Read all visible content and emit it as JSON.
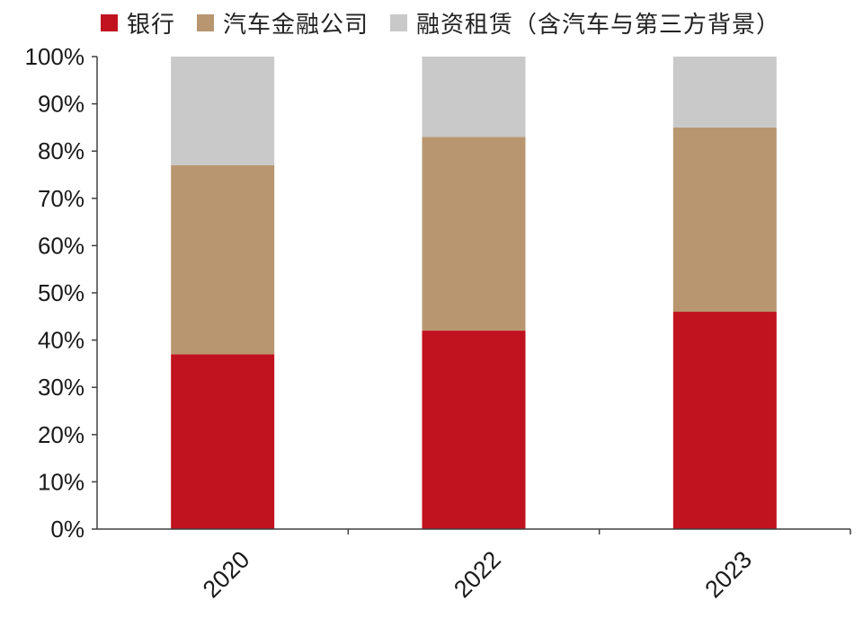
{
  "chart_data": {
    "type": "bar",
    "stacked": true,
    "categories": [
      "2020",
      "2022",
      "2023"
    ],
    "series": [
      {
        "name": "银行",
        "color": "#c1121f",
        "values": [
          37,
          42,
          46
        ]
      },
      {
        "name": "汽车金融公司",
        "color": "#b89770",
        "values": [
          40,
          41,
          39
        ]
      },
      {
        "name": "融资租赁（含汽车与第三方背景）",
        "color": "#c9c9c9",
        "values": [
          23,
          17,
          15
        ]
      }
    ],
    "ylim": [
      0,
      100
    ],
    "yticks": [
      "0%",
      "10%",
      "20%",
      "30%",
      "40%",
      "50%",
      "60%",
      "70%",
      "80%",
      "90%",
      "100%"
    ],
    "grid": false,
    "legend_position": "top"
  }
}
